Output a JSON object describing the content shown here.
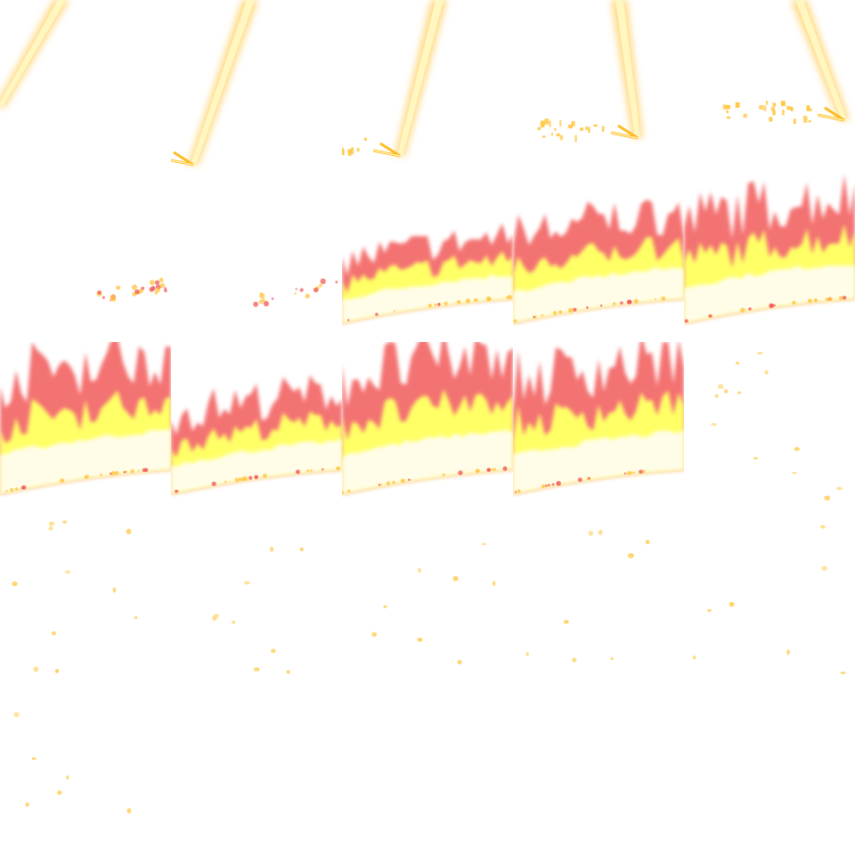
{
  "sprite_sheet": {
    "columns": 5,
    "rows": 5,
    "frames": [
      {
        "type": "beam",
        "phase": 0
      },
      {
        "type": "beam",
        "phase": 1
      },
      {
        "type": "beam",
        "phase": 2
      },
      {
        "type": "beam",
        "phase": 3
      },
      {
        "type": "beam",
        "phase": 4
      },
      {
        "type": "sparks",
        "level": 1
      },
      {
        "type": "sparks",
        "level": 0.6
      },
      {
        "type": "flame",
        "level": 0.35
      },
      {
        "type": "flame",
        "level": 0.65
      },
      {
        "type": "flame",
        "level": 0.85
      },
      {
        "type": "flame",
        "level": 1.0
      },
      {
        "type": "flame",
        "level": 0.55
      },
      {
        "type": "flame",
        "level": 1.0
      },
      {
        "type": "flame",
        "level": 0.95
      },
      {
        "type": "embers",
        "level": 0.6
      },
      {
        "type": "embers",
        "level": 0.5
      },
      {
        "type": "embers",
        "level": 0.4
      },
      {
        "type": "embers",
        "level": 0.35
      },
      {
        "type": "embers",
        "level": 0.35
      },
      {
        "type": "embers",
        "level": 0.3
      },
      {
        "type": "embers",
        "level": 0.25
      },
      {
        "type": "empty",
        "level": 0
      },
      {
        "type": "empty",
        "level": 0
      },
      {
        "type": "empty",
        "level": 0
      },
      {
        "type": "empty",
        "level": 0
      }
    ]
  },
  "colors": {
    "background": "#ffffff",
    "beam_core": "#fff6c0",
    "beam_edge": "#ffbb22",
    "flame_red": "#f25a5a",
    "flame_yellow": "#ffff66",
    "flame_white": "#fffde8",
    "spark": "#ffc640",
    "ember": "#ffd060"
  },
  "icons": [
    "lightning-beam-icon",
    "spark-icon",
    "fire-icon",
    "ember-icon"
  ]
}
